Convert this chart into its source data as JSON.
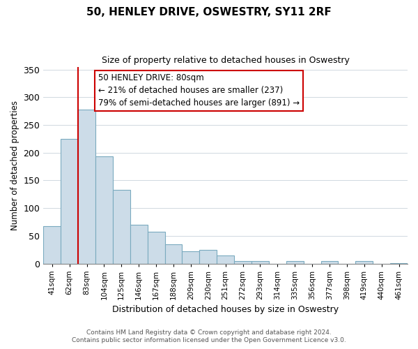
{
  "title": "50, HENLEY DRIVE, OSWESTRY, SY11 2RF",
  "subtitle": "Size of property relative to detached houses in Oswestry",
  "xlabel": "Distribution of detached houses by size in Oswestry",
  "ylabel": "Number of detached properties",
  "bar_labels": [
    "41sqm",
    "62sqm",
    "83sqm",
    "104sqm",
    "125sqm",
    "146sqm",
    "167sqm",
    "188sqm",
    "209sqm",
    "230sqm",
    "251sqm",
    "272sqm",
    "293sqm",
    "314sqm",
    "335sqm",
    "356sqm",
    "377sqm",
    "398sqm",
    "419sqm",
    "440sqm",
    "461sqm"
  ],
  "bar_values": [
    68,
    225,
    278,
    193,
    133,
    70,
    57,
    35,
    22,
    25,
    15,
    4,
    5,
    0,
    5,
    0,
    4,
    0,
    5,
    0,
    1
  ],
  "bar_color": "#ccdce8",
  "bar_edge_color": "#7aaabf",
  "vline_color": "#cc0000",
  "annotation_title": "50 HENLEY DRIVE: 80sqm",
  "annotation_line1": "← 21% of detached houses are smaller (237)",
  "annotation_line2": "79% of semi-detached houses are larger (891) →",
  "annotation_box_color": "#ffffff",
  "annotation_box_edge": "#cc0000",
  "ylim": [
    0,
    355
  ],
  "yticks": [
    0,
    50,
    100,
    150,
    200,
    250,
    300,
    350
  ],
  "footer1": "Contains HM Land Registry data © Crown copyright and database right 2024.",
  "footer2": "Contains public sector information licensed under the Open Government Licence v3.0."
}
